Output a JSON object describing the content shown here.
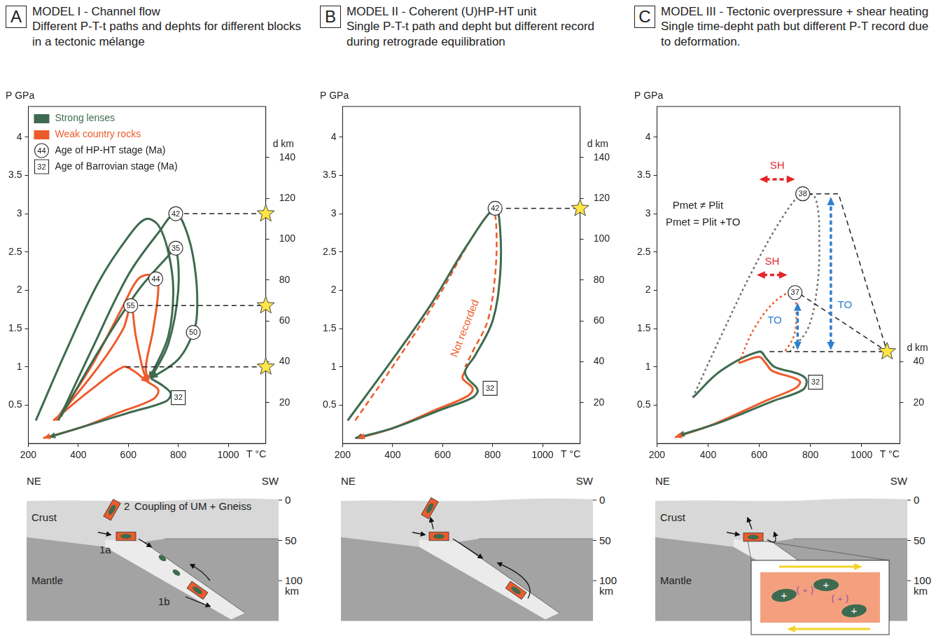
{
  "chart_data": [
    {
      "panel": "A",
      "type": "line",
      "title": "MODEL I - Channel flow",
      "subtitle": "Different P-T-t paths and dephts for different blocks in a tectonic mélange",
      "x_label": "T °C",
      "y_label": "P GPa",
      "y2_label": "d km",
      "xlim": [
        200,
        1150
      ],
      "xticks": [
        200,
        400,
        600,
        800,
        1000
      ],
      "ylim": [
        0,
        4.4
      ],
      "yticks": [
        0.5,
        1,
        1.5,
        2,
        2.5,
        3,
        3.5,
        4
      ],
      "y2lim": [
        0,
        165
      ],
      "y2ticks": [
        20,
        40,
        60,
        80,
        100,
        120,
        140
      ],
      "grid": false,
      "legend": "top-left",
      "series": [
        {
          "name": "Strong lenses",
          "color": "#3e6b4f",
          "line_style": "solid",
          "paths": [
            {
              "x": [
                230,
                350,
                480,
                600,
                670,
                720,
                760,
                780,
                760,
                700,
                680
              ],
              "values": [
                0.3,
                1.2,
                2.1,
                2.7,
                2.93,
                2.85,
                2.5,
                2.0,
                1.4,
                0.95,
                0.85
              ]
            },
            {
              "x": [
                320,
                450,
                600,
                720,
                790,
                840,
                870,
                875,
                860,
                800,
                690
              ],
              "values": [
                0.3,
                1.2,
                2.2,
                2.75,
                3.0,
                2.7,
                2.2,
                1.7,
                1.45,
                1.1,
                0.85
              ]
            },
            {
              "x": [
                330,
                480,
                640,
                760,
                790,
                800,
                760,
                690
              ],
              "values": [
                0.35,
                1.2,
                2.0,
                2.45,
                2.55,
                2.0,
                1.3,
                0.85
              ]
            },
            {
              "x": [
                690,
                740,
                770,
                750,
                600,
                450,
                280
              ],
              "values": [
                0.85,
                0.75,
                0.65,
                0.55,
                0.4,
                0.25,
                0.08
              ]
            }
          ]
        },
        {
          "name": "Weak country rocks",
          "color": "#ee5b2b",
          "line_style": "solid",
          "paths": [
            {
              "x": [
                310,
                450,
                580,
                640,
                690,
                720,
                700,
                670,
                680
              ],
              "values": [
                0.3,
                1.0,
                1.8,
                2.15,
                2.2,
                2.1,
                1.5,
                1.0,
                0.8
              ]
            },
            {
              "x": [
                320,
                480,
                580,
                610,
                630,
                660,
                680
              ],
              "values": [
                0.35,
                1.0,
                1.5,
                1.8,
                1.4,
                0.95,
                0.8
              ]
            },
            {
              "x": [
                300,
                450,
                580,
                620,
                660,
                680
              ],
              "values": [
                0.3,
                0.7,
                1.0,
                0.95,
                0.85,
                0.8
              ]
            },
            {
              "x": [
                680,
                720,
                700,
                560,
                420,
                260
              ],
              "values": [
                0.8,
                0.7,
                0.58,
                0.4,
                0.22,
                0.07
              ]
            }
          ]
        }
      ],
      "age_markers": [
        {
          "x": 790,
          "y": 3.0,
          "age": 42,
          "marker": "circle"
        },
        {
          "x": 790,
          "y": 2.55,
          "age": 35,
          "marker": "circle"
        },
        {
          "x": 710,
          "y": 2.15,
          "age": 44,
          "marker": "circle"
        },
        {
          "x": 610,
          "y": 1.8,
          "age": 55,
          "marker": "circle"
        },
        {
          "x": 860,
          "y": 1.45,
          "age": 50,
          "marker": "circle"
        },
        {
          "x": 800,
          "y": 0.6,
          "age": 32,
          "marker": "square"
        }
      ],
      "legend_markers": [
        {
          "marker": "circle",
          "age": 44,
          "text": "Age of HP-HT stage (Ma)"
        },
        {
          "marker": "square",
          "age": 32,
          "text": "Age of Barrovian stage (Ma)"
        }
      ],
      "links": [
        {
          "x": [
            790,
            1150
          ],
          "values": [
            3.0,
            3.0
          ],
          "marker": "star"
        },
        {
          "x": [
            610,
            1150
          ],
          "values": [
            1.8,
            1.8
          ],
          "marker": "star"
        },
        {
          "x": [
            590,
            1150
          ],
          "values": [
            1.0,
            1.0
          ],
          "marker": "star"
        }
      ]
    },
    {
      "panel": "B",
      "type": "line",
      "title": "MODEL II - Coherent (U)HP-HT unit",
      "subtitle": "Single P-T-t path and depht but different record during retrograde equilibration",
      "x_label": "T °C",
      "y_label": "P GPa",
      "y2_label": "d km",
      "xlim": [
        200,
        1150
      ],
      "xticks": [
        200,
        400,
        600,
        800,
        1000
      ],
      "ylim": [
        0,
        4.4
      ],
      "yticks": [
        0.5,
        1,
        1.5,
        2,
        2.5,
        3,
        3.5,
        4
      ],
      "y2lim": [
        0,
        165
      ],
      "y2ticks": [
        20,
        40,
        60,
        80,
        100,
        120,
        140
      ],
      "grid": false,
      "series": [
        {
          "color": "#3e6b4f",
          "line_style": "solid",
          "paths": [
            {
              "x": [
                220,
                400,
                550,
                700,
                810,
                830,
                830,
                800,
                730,
                690,
                700,
                740,
                720,
                600,
                400,
                250
              ],
              "values": [
                0.3,
                1.1,
                1.8,
                2.6,
                3.07,
                2.8,
                2.2,
                1.6,
                1.15,
                0.95,
                0.85,
                0.7,
                0.6,
                0.45,
                0.2,
                0.07
              ]
            }
          ]
        },
        {
          "color": "#ee5b2b",
          "line_style": "dashed",
          "paths": [
            {
              "x": [
                250,
                420,
                580,
                720,
                800,
                815,
                810,
                780,
                720,
                690
              ],
              "values": [
                0.3,
                1.1,
                1.9,
                2.7,
                3.03,
                2.8,
                2.2,
                1.6,
                1.2,
                1.0
              ]
            }
          ]
        },
        {
          "color": "#ee5b2b",
          "line_style": "solid",
          "paths": [
            {
              "x": [
                690,
                680,
                720,
                700,
                580,
                400,
                260
              ],
              "values": [
                0.95,
                0.85,
                0.72,
                0.62,
                0.45,
                0.2,
                0.07
              ]
            }
          ]
        }
      ],
      "age_markers": [
        {
          "x": 810,
          "y": 3.07,
          "age": 42,
          "marker": "circle"
        },
        {
          "x": 790,
          "y": 0.72,
          "age": 32,
          "marker": "square"
        }
      ],
      "links": [
        {
          "x": [
            820,
            1150
          ],
          "values": [
            3.07,
            3.07
          ],
          "marker": "star"
        }
      ],
      "annotations": [
        {
          "text": "Not recorded",
          "x": 690,
          "y": 1.5,
          "color": "#ee5b2b"
        }
      ]
    },
    {
      "panel": "C",
      "type": "line",
      "title": "MODEL III - Tectonic overpressure + shear heating",
      "subtitle": "Single time-depht path but different P-T record due to deformation.",
      "x_label": "T °C",
      "y_label": "P GPa",
      "y2_label": "d km",
      "xlim": [
        200,
        1150
      ],
      "xticks": [
        200,
        400,
        600,
        800,
        1000
      ],
      "ylim": [
        0,
        4.4
      ],
      "yticks": [
        0.5,
        1,
        1.5,
        2,
        2.5,
        3,
        3.5,
        4
      ],
      "y2lim": [
        0,
        165
      ],
      "y2ticks": [
        20,
        40
      ],
      "grid": false,
      "series": [
        {
          "color": "#707070",
          "line_style": "dotted",
          "paths": [
            {
              "x": [
                340,
                450,
                580,
                700,
                770,
                820,
                835,
                825,
                790,
                720
              ],
              "values": [
                0.6,
                1.4,
                2.3,
                3.0,
                3.26,
                3.2,
                2.6,
                2.0,
                1.5,
                1.2
              ]
            }
          ]
        },
        {
          "color": "#ee5b2b",
          "line_style": "dotted",
          "paths": [
            {
              "x": [
                520,
                580,
                660,
                730,
                745,
                735,
                700
              ],
              "values": [
                1.05,
                1.5,
                1.85,
                1.97,
                1.7,
                1.4,
                1.2
              ]
            }
          ]
        },
        {
          "color": "#3e6b4f",
          "line_style": "solid",
          "paths": [
            {
              "x": [
                340,
                450,
                600,
                630,
                660,
                760,
                785,
                770,
                650,
                450,
                280
              ],
              "values": [
                0.6,
                0.95,
                1.2,
                1.1,
                1.0,
                0.9,
                0.82,
                0.7,
                0.55,
                0.28,
                0.1
              ]
            }
          ]
        },
        {
          "color": "#ee5b2b",
          "line_style": "solid",
          "paths": [
            {
              "x": [
                520,
                600,
                625,
                650,
                740,
                760,
                740,
                620,
                420,
                270
              ],
              "values": [
                1.05,
                1.13,
                1.05,
                0.95,
                0.85,
                0.8,
                0.72,
                0.55,
                0.25,
                0.08
              ]
            }
          ]
        }
      ],
      "age_markers": [
        {
          "x": 770,
          "y": 3.26,
          "age": 38,
          "marker": "circle"
        },
        {
          "x": 740,
          "y": 1.97,
          "age": 37,
          "marker": "circle"
        },
        {
          "x": 820,
          "y": 0.8,
          "age": 32,
          "marker": "square"
        }
      ],
      "links": [
        {
          "x": [
            640,
            1100
          ],
          "values": [
            1.2,
            1.2
          ],
          "marker": "star"
        },
        {
          "x": [
            760,
            1100
          ],
          "values": [
            1.95,
            1.2
          ]
        },
        {
          "x": [
            790,
            910,
            1100
          ],
          "values": [
            3.26,
            3.26,
            1.2
          ]
        }
      ],
      "arrows": [
        {
          "x": [
            600,
            740
          ],
          "values": [
            3.45,
            3.45
          ],
          "color": "#e3262b"
        },
        {
          "x": [
            590,
            710
          ],
          "values": [
            2.2,
            2.2
          ],
          "color": "#e3262b"
        },
        {
          "x": [
            880,
            880
          ],
          "values": [
            1.22,
            3.22
          ],
          "color": "#2f7fcf"
        },
        {
          "x": [
            750,
            750
          ],
          "values": [
            1.22,
            1.84
          ],
          "color": "#2f7fcf"
        }
      ],
      "annotations": [
        {
          "text": "SH",
          "x": 670,
          "y": 3.62,
          "color": "#e3262b"
        },
        {
          "text": "SH",
          "x": 650,
          "y": 2.37,
          "color": "#e3262b"
        },
        {
          "text": "TO",
          "x": 935,
          "y": 1.8,
          "color": "#2f7fcf"
        },
        {
          "text": "TO",
          "x": 660,
          "y": 1.6,
          "color": "#2f7fcf"
        },
        {
          "text": "Pmet ≠ Plit",
          "x": 360,
          "y": 3.1,
          "color": "#222222"
        },
        {
          "text": "Pmet = Plit +TO",
          "x": 380,
          "y": 2.88,
          "color": "#222222"
        }
      ]
    }
  ],
  "sections": [
    {
      "left": "NE",
      "right": "SW",
      "depth_ticks": [
        0,
        50,
        100
      ],
      "depth_unit": "km",
      "crust": "Crust",
      "mantle": "Mantle",
      "block_labels": [
        "2",
        "1a",
        "1b"
      ],
      "note": "Coupling of UM + Gneiss"
    },
    {
      "left": "NE",
      "right": "SW",
      "depth_ticks": [
        0,
        50,
        100
      ],
      "depth_unit": "km"
    },
    {
      "left": "NE",
      "right": "SW",
      "depth_ticks": [
        0,
        50,
        100
      ],
      "depth_unit": "km",
      "crust": "Crust",
      "mantle": "Mantle",
      "inset_label": "+"
    }
  ]
}
